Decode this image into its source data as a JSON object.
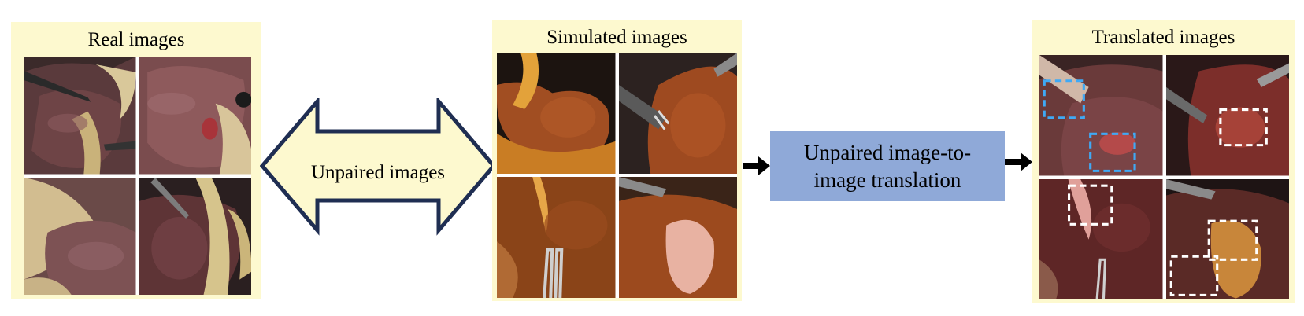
{
  "panels": {
    "real": {
      "title": "Real images",
      "images": [
        {
          "subject": "laparoscopic liver with grasper tool"
        },
        {
          "subject": "laparoscopic liver surface close-up"
        },
        {
          "subject": "laparoscopic liver with fat tissue"
        },
        {
          "subject": "laparoscopic liver with dissection instrument"
        }
      ]
    },
    "simulated": {
      "title": "Simulated images",
      "images": [
        {
          "subject": "rendered orange liver with yellow gallbladder"
        },
        {
          "subject": "rendered liver with grey grasper tool"
        },
        {
          "subject": "rendered liver with gallbladder and clip"
        },
        {
          "subject": "rendered liver with pink gallbladder and grasper"
        }
      ]
    },
    "translated": {
      "title": "Translated images",
      "images": [
        {
          "subject": "translated liver with blue dashed highlights",
          "highlight_color": "#3fa9f5"
        },
        {
          "subject": "translated liver with white dashed highlight",
          "highlight_color": "#ffffff"
        },
        {
          "subject": "translated liver with white dashed highlight",
          "highlight_color": "#ffffff"
        },
        {
          "subject": "translated liver with white dashed highlights",
          "highlight_color": "#ffffff"
        }
      ]
    }
  },
  "double_arrow": {
    "label": "Unpaired images",
    "fill_color": "#fdf9cf",
    "stroke_color": "#1f2e52"
  },
  "translation_box": {
    "label": "Unpaired image-to-image translation",
    "fill_color": "#8fa9d8"
  },
  "colors": {
    "panel_background": "#fdf9cf",
    "arrow_black": "#000000"
  }
}
